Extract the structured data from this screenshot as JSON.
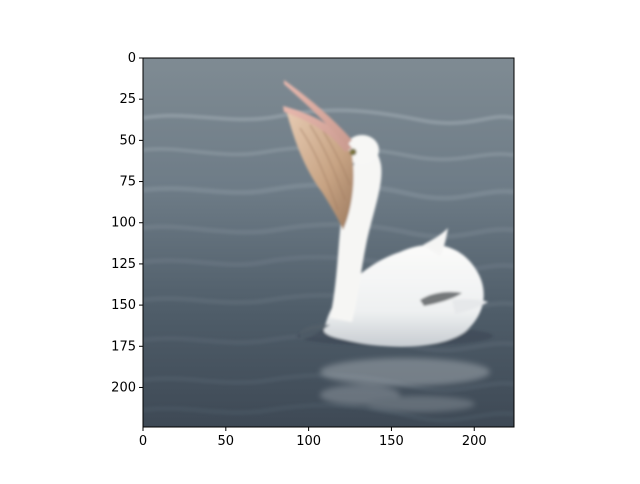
{
  "image": {
    "description_icon": "white-pelican-on-water-icon",
    "dominant_colors": {
      "water_dark": "#3f4b57",
      "water_mid": "#5d6d79",
      "water_light": "#8b98a2",
      "pelican_white": "#f2f2f0",
      "pelican_shadow": "#cfd2d6",
      "pouch": "#c9a887",
      "pouch_dark": "#8f6d55",
      "bill": "#d9a8a0",
      "eye": "#7a7440"
    }
  },
  "chart_data": {
    "type": "image",
    "title": "",
    "xlabel": "",
    "ylabel": "",
    "xlim": [
      0,
      224
    ],
    "ylim": [
      224,
      0
    ],
    "x_ticks": [
      "0",
      "50",
      "100",
      "150",
      "200"
    ],
    "y_ticks": [
      "0",
      "25",
      "50",
      "75",
      "100",
      "125",
      "150",
      "175",
      "200"
    ],
    "grid": false,
    "legend": "none"
  }
}
